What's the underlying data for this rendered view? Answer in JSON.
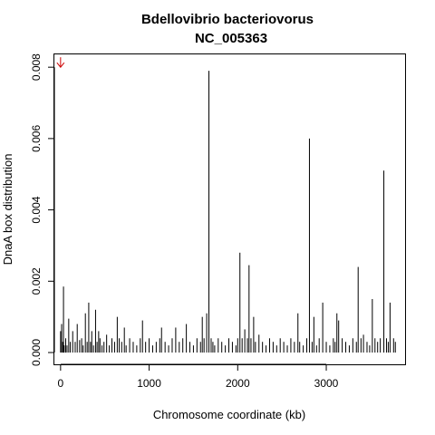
{
  "chart_data": {
    "type": "bar",
    "title": "Bdellovibrio bacteriovorus",
    "subtitle": "NC_005363",
    "xlabel": "Chromosome coordinate (kb)",
    "ylabel": "DnaA box distribution",
    "xlim": [
      -70,
      3890
    ],
    "ylim": [
      -0.00033,
      0.00836
    ],
    "x_ticks": [
      0,
      1000,
      2000,
      3000
    ],
    "x_tick_labels": [
      "0",
      "1000",
      "2000",
      "3000"
    ],
    "y_ticks": [
      0,
      0.002,
      0.004,
      0.006,
      0.008
    ],
    "y_tick_labels": [
      "0.000",
      "0.002",
      "0.004",
      "0.006",
      "0.008"
    ],
    "marker": {
      "x": 0,
      "y": 0.008,
      "color": "#cc0000",
      "shape": "down-arrow"
    },
    "bar_color": "#000000",
    "grid": false,
    "legend": "none",
    "x": [
      0,
      12,
      25,
      33,
      41,
      58,
      73,
      92,
      110,
      137,
      165,
      188,
      215,
      238,
      255,
      280,
      300,
      318,
      338,
      352,
      372,
      395,
      412,
      430,
      445,
      468,
      490,
      520,
      550,
      580,
      610,
      640,
      662,
      690,
      720,
      740,
      780,
      820,
      860,
      900,
      925,
      960,
      1000,
      1040,
      1080,
      1120,
      1140,
      1180,
      1220,
      1260,
      1300,
      1340,
      1380,
      1420,
      1460,
      1500,
      1540,
      1580,
      1600,
      1620,
      1650,
      1675,
      1700,
      1720,
      1740,
      1780,
      1820,
      1860,
      1900,
      1940,
      1980,
      2000,
      2025,
      2050,
      2080,
      2110,
      2128,
      2150,
      2180,
      2200,
      2240,
      2280,
      2320,
      2360,
      2400,
      2440,
      2480,
      2520,
      2560,
      2600,
      2640,
      2680,
      2700,
      2740,
      2780,
      2810,
      2840,
      2860,
      2890,
      2920,
      2960,
      3000,
      3040,
      3080,
      3100,
      3120,
      3140,
      3180,
      3220,
      3260,
      3300,
      3340,
      3360,
      3392,
      3420,
      3460,
      3490,
      3520,
      3550,
      3580,
      3610,
      3650,
      3680,
      3700,
      3720,
      3760,
      3780
    ],
    "values": [
      0.0006,
      0.0008,
      0.0003,
      0.00185,
      0.0002,
      0.0004,
      0.0002,
      0.00095,
      0.0003,
      0.0006,
      0.0003,
      0.0008,
      0.00035,
      0.0004,
      0.0002,
      0.0011,
      0.0003,
      0.0014,
      0.0003,
      0.0006,
      0.0002,
      0.0012,
      0.0003,
      0.0006,
      0.0004,
      0.0002,
      0.0003,
      0.0005,
      0.0002,
      0.0004,
      0.0003,
      0.001,
      0.0004,
      0.0003,
      0.0007,
      0.0002,
      0.0004,
      0.0003,
      0.0002,
      0.0004,
      0.0009,
      0.0003,
      0.0004,
      0.0002,
      0.0003,
      0.0004,
      0.0007,
      0.0003,
      0.0002,
      0.0004,
      0.0007,
      0.0003,
      0.0004,
      0.0008,
      0.0003,
      0.0002,
      0.0004,
      0.0003,
      0.001,
      0.0004,
      0.0011,
      0.0079,
      0.0004,
      0.0003,
      0.0002,
      0.0004,
      0.0003,
      0.0002,
      0.0004,
      0.0003,
      0.0002,
      0.0004,
      0.0028,
      0.0004,
      0.00065,
      0.0004,
      0.00245,
      0.0004,
      0.001,
      0.0003,
      0.0005,
      0.0003,
      0.0002,
      0.0004,
      0.0003,
      0.0002,
      0.0004,
      0.0003,
      0.0002,
      0.0004,
      0.0003,
      0.0011,
      0.0003,
      0.0002,
      0.0004,
      0.006,
      0.0003,
      0.001,
      0.0002,
      0.0004,
      0.0014,
      0.0003,
      0.0002,
      0.0004,
      0.0003,
      0.0011,
      0.0009,
      0.0004,
      0.0003,
      0.0002,
      0.0004,
      0.0003,
      0.0024,
      0.0004,
      0.0005,
      0.0003,
      0.0002,
      0.0015,
      0.0004,
      0.0003,
      0.0004,
      0.0051,
      0.0004,
      0.0003,
      0.0014,
      0.0004,
      0.0003
    ]
  }
}
